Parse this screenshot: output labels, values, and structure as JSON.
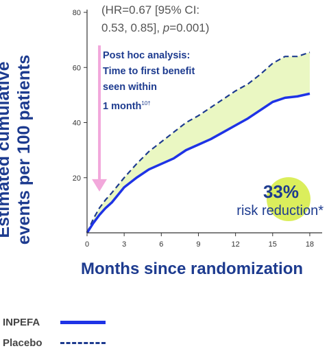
{
  "colors": {
    "inpefa_line": "#1e33e6",
    "placebo_line": "#1d3b8f",
    "shaded_area": "#eaf7c2",
    "axis": "#333333",
    "arrow": "#f2a8db",
    "highlight_bubble": "#dbee5c"
  },
  "hr_text": {
    "line1": "(HR=0.67 [95% CI:",
    "line2_prefix": "0.53, 0.85], ",
    "line2_p": "p",
    "line2_suffix": "=0.001)"
  },
  "annotation": {
    "lines": [
      "Post hoc analysis:",
      "Time to first benefit",
      "seen within"
    ],
    "last_line": "1 month",
    "superscript": "10†"
  },
  "risk_reduction": {
    "value": "33%",
    "label": "risk reduction*"
  },
  "legend": [
    {
      "label": "INPEFA",
      "style": "solid"
    },
    {
      "label": "Placebo",
      "style": "dashed"
    }
  ],
  "chart_data": {
    "type": "line",
    "xlabel": "Months since randomization",
    "ylabel": "Estimated cumulative events per 100 patients",
    "xlim": [
      0,
      19
    ],
    "ylim": [
      0,
      80
    ],
    "x_ticks": [
      0,
      3,
      6,
      9,
      12,
      15,
      18
    ],
    "y_ticks": [
      20,
      40,
      60,
      80
    ],
    "grid": false,
    "legend_position": "bottom-left",
    "shaded_between_series": true,
    "x": [
      0,
      0.5,
      1,
      1.5,
      2,
      3,
      4,
      5,
      6,
      7,
      8,
      9,
      10,
      11,
      12,
      13,
      14,
      15,
      16,
      17,
      18
    ],
    "series": [
      {
        "name": "INPEFA",
        "values": [
          0,
          3.5,
          6.5,
          9,
          11,
          16.5,
          20,
          23,
          25,
          27,
          30,
          32,
          34,
          36.5,
          39,
          41.5,
          44.5,
          47.5,
          49,
          49.5,
          50.5
        ]
      },
      {
        "name": "Placebo",
        "values": [
          0,
          5,
          9,
          12,
          14.5,
          20,
          25,
          29.5,
          33,
          36.5,
          40,
          42.5,
          45.5,
          48.5,
          51.5,
          54,
          57.5,
          61.5,
          64,
          64,
          65.5
        ]
      }
    ],
    "arrow_annotation": {
      "from_y": 68,
      "to_y": 15,
      "x": 1
    }
  }
}
